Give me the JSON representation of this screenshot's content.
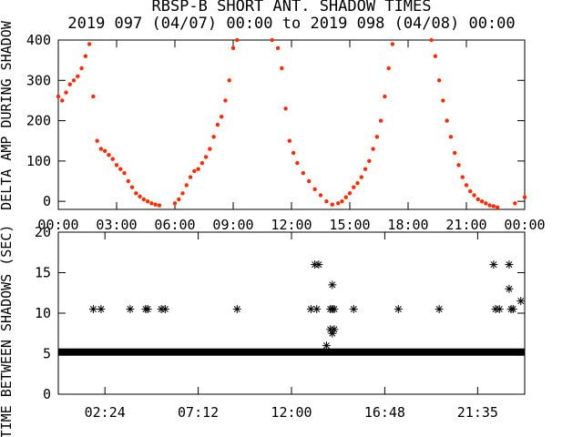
{
  "title_line1": "RBSP-B SHORT ANT. SHADOW TIMES",
  "title_line2": "2019 097 (04/07) 00:00 to 2019 098 (04/08) 00:00",
  "colors": {
    "trace": "#ff2a00",
    "ink": "#000000",
    "background": "#ffffff"
  },
  "chart_data": [
    {
      "type": "scatter",
      "ylabel": "DELTA AMP DURING SHADOW",
      "xlim": [
        0,
        24
      ],
      "ylim": [
        -20,
        400
      ],
      "x_tick_labels": [
        "00:00",
        "03:00",
        "06:00",
        "09:00",
        "12:00",
        "15:00",
        "18:00",
        "21:00",
        "00:00"
      ],
      "x_tick_values": [
        0,
        3,
        6,
        9,
        12,
        15,
        18,
        21,
        24
      ],
      "y_tick_labels": [
        "0",
        "100",
        "200",
        "300",
        "400"
      ],
      "y_tick_values": [
        0,
        100,
        200,
        300,
        400
      ],
      "series": [
        {
          "color": "#ff2a00",
          "points": [
            [
              0.0,
              260
            ],
            [
              0.2,
              250
            ],
            [
              0.4,
              270
            ],
            [
              0.6,
              290
            ],
            [
              0.8,
              300
            ],
            [
              1.0,
              310
            ],
            [
              1.2,
              330
            ],
            [
              1.4,
              360
            ],
            [
              1.6,
              390
            ],
            [
              1.8,
              260
            ],
            [
              2.0,
              150
            ],
            [
              2.2,
              130
            ],
            [
              2.4,
              125
            ],
            [
              2.6,
              115
            ],
            [
              2.8,
              105
            ],
            [
              3.0,
              90
            ],
            [
              3.2,
              80
            ],
            [
              3.4,
              70
            ],
            [
              3.6,
              50
            ],
            [
              3.8,
              35
            ],
            [
              4.0,
              20
            ],
            [
              4.2,
              12
            ],
            [
              4.4,
              5
            ],
            [
              4.6,
              0
            ],
            [
              4.8,
              -5
            ],
            [
              5.0,
              -8
            ],
            [
              5.2,
              -10
            ],
            [
              6.0,
              -5
            ],
            [
              6.2,
              5
            ],
            [
              6.4,
              20
            ],
            [
              6.6,
              40
            ],
            [
              6.8,
              60
            ],
            [
              7.0,
              75
            ],
            [
              7.2,
              80
            ],
            [
              7.4,
              95
            ],
            [
              7.6,
              110
            ],
            [
              7.8,
              130
            ],
            [
              8.0,
              160
            ],
            [
              8.2,
              190
            ],
            [
              8.4,
              210
            ],
            [
              8.6,
              250
            ],
            [
              8.8,
              300
            ],
            [
              9.0,
              380
            ],
            [
              9.2,
              400
            ],
            [
              11.0,
              400
            ],
            [
              11.3,
              380
            ],
            [
              11.5,
              330
            ],
            [
              11.7,
              230
            ],
            [
              11.9,
              150
            ],
            [
              12.1,
              120
            ],
            [
              12.3,
              95
            ],
            [
              12.6,
              70
            ],
            [
              12.9,
              50
            ],
            [
              13.2,
              30
            ],
            [
              13.5,
              15
            ],
            [
              13.8,
              0
            ],
            [
              14.1,
              -8
            ],
            [
              14.4,
              -5
            ],
            [
              14.6,
              0
            ],
            [
              14.8,
              10
            ],
            [
              15.0,
              20
            ],
            [
              15.2,
              35
            ],
            [
              15.4,
              45
            ],
            [
              15.6,
              60
            ],
            [
              15.8,
              80
            ],
            [
              16.0,
              100
            ],
            [
              16.2,
              130
            ],
            [
              16.4,
              160
            ],
            [
              16.6,
              200
            ],
            [
              16.8,
              260
            ],
            [
              17.0,
              330
            ],
            [
              17.2,
              390
            ],
            [
              19.2,
              400
            ],
            [
              19.4,
              360
            ],
            [
              19.6,
              300
            ],
            [
              19.8,
              250
            ],
            [
              20.0,
              200
            ],
            [
              20.2,
              160
            ],
            [
              20.4,
              120
            ],
            [
              20.6,
              90
            ],
            [
              20.8,
              60
            ],
            [
              21.0,
              40
            ],
            [
              21.2,
              25
            ],
            [
              21.4,
              15
            ],
            [
              21.6,
              5
            ],
            [
              21.8,
              0
            ],
            [
              22.0,
              -5
            ],
            [
              22.2,
              -10
            ],
            [
              22.4,
              -12
            ],
            [
              22.6,
              -15
            ],
            [
              23.5,
              -5
            ],
            [
              24.0,
              10
            ]
          ]
        }
      ]
    },
    {
      "type": "scatter",
      "ylabel": "TIME BETWEEN SHADOWS (SEC)",
      "xlim": [
        0,
        24
      ],
      "ylim": [
        0,
        20
      ],
      "x_tick_labels": [
        "02:24",
        "07:12",
        "12:00",
        "16:48",
        "21:35"
      ],
      "x_tick_values": [
        2.4,
        7.2,
        12.0,
        16.8,
        21.58
      ],
      "y_tick_labels": [
        "0",
        "5",
        "10",
        "15",
        "20"
      ],
      "y_tick_values": [
        0,
        5,
        10,
        15,
        20
      ],
      "baseline": {
        "value": 5.2,
        "x_range": [
          0,
          24
        ]
      },
      "series": [
        {
          "color": "#000000",
          "points": [
            [
              1.8,
              10.5
            ],
            [
              2.2,
              10.5
            ],
            [
              3.7,
              10.5
            ],
            [
              4.5,
              10.5
            ],
            [
              4.6,
              10.5
            ],
            [
              5.3,
              10.5
            ],
            [
              5.5,
              10.5
            ],
            [
              9.2,
              10.5
            ],
            [
              13.0,
              10.5
            ],
            [
              13.3,
              10.5
            ],
            [
              13.2,
              16
            ],
            [
              13.4,
              16
            ],
            [
              14.0,
              10.5
            ],
            [
              14.1,
              10.5
            ],
            [
              14.2,
              10.5
            ],
            [
              14.1,
              13.5
            ],
            [
              14.0,
              8
            ],
            [
              14.1,
              7.5
            ],
            [
              14.2,
              8
            ],
            [
              13.8,
              6
            ],
            [
              15.2,
              10.5
            ],
            [
              17.5,
              10.5
            ],
            [
              19.6,
              10.5
            ],
            [
              22.4,
              16
            ],
            [
              22.5,
              10.5
            ],
            [
              22.7,
              10.5
            ],
            [
              23.2,
              16
            ],
            [
              23.3,
              10.5
            ],
            [
              23.4,
              10.5
            ],
            [
              23.2,
              13
            ],
            [
              23.8,
              11.5
            ]
          ]
        }
      ]
    }
  ]
}
